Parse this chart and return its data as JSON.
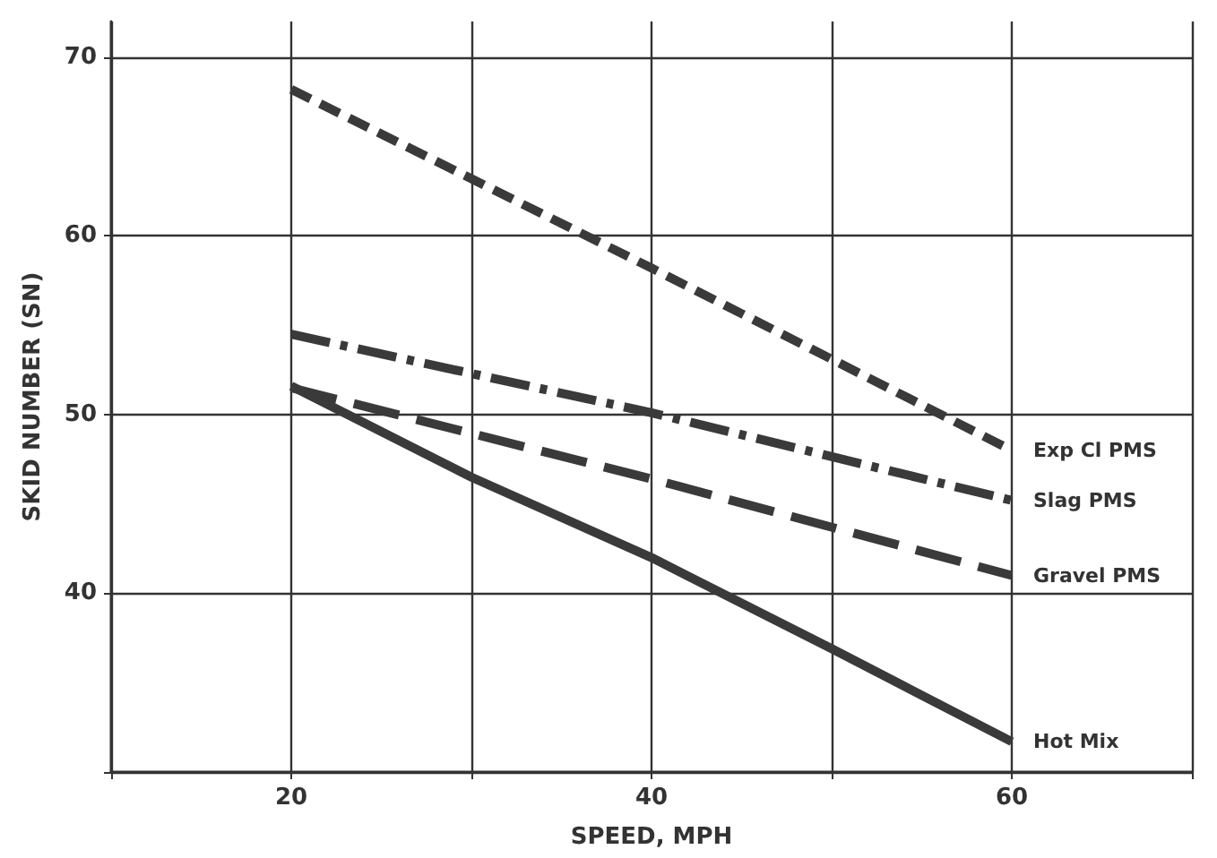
{
  "chart_data": {
    "type": "line",
    "xlabel": "SPEED, MPH",
    "ylabel": "SKID NUMBER (SN)",
    "xlim": [
      10,
      70
    ],
    "xticks": [
      {
        "value": 10,
        "label": null
      },
      20,
      {
        "value": 30,
        "label": null
      },
      40,
      {
        "value": 50,
        "label": null
      },
      60,
      {
        "value": 70,
        "label": null
      }
    ],
    "ylim": [
      30,
      72
    ],
    "yticks": [
      {
        "value": 30,
        "label": null
      },
      40,
      50,
      60,
      70
    ],
    "grid": true,
    "legend": false,
    "marker": "none",
    "series": [
      {
        "name": "Exp Cl PMS",
        "color": "#3a3a3a",
        "x": [
          20,
          40,
          60
        ],
        "values": [
          68.2,
          58.2,
          48.0
        ],
        "line_style": "dashed"
      },
      {
        "name": "Slag PMS",
        "color": "#3a3a3a",
        "x": [
          20,
          40,
          60
        ],
        "values": [
          54.5,
          50.1,
          45.2
        ],
        "line_style": "dashed"
      },
      {
        "name": "Gravel PMS",
        "color": "#3a3a3a",
        "x": [
          20,
          40,
          60
        ],
        "values": [
          51.5,
          46.4,
          41.0
        ],
        "line_style": "dashed"
      },
      {
        "name": "Hot Mix",
        "color": "#3a3a3a",
        "x": [
          20,
          30,
          40,
          50,
          60
        ],
        "values": [
          51.6,
          46.5,
          42.0,
          36.9,
          31.7
        ],
        "line_style": "solid"
      }
    ]
  }
}
